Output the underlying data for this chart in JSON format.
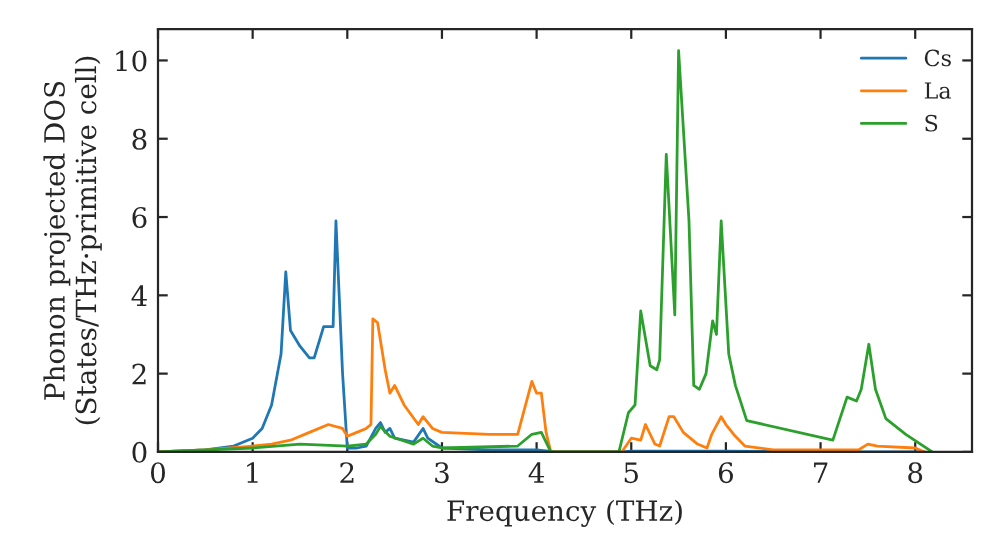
{
  "chart_data": {
    "type": "line",
    "xlabel": "Frequency (THz)",
    "ylabel": "Phonon projected DOS\n(States/THz·primitive cell)",
    "xlim": [
      0,
      8.6
    ],
    "xticks": [
      0,
      1,
      2,
      3,
      4,
      5,
      6,
      7,
      8
    ],
    "ylim": [
      0,
      10.8
    ],
    "yticks": [
      0,
      2,
      4,
      6,
      8,
      10
    ],
    "grid": false,
    "legend": "top right",
    "series": [
      {
        "name": "Cs",
        "color": "#1f77b4",
        "x": [
          0,
          0.5,
          0.8,
          1.0,
          1.1,
          1.2,
          1.3,
          1.35,
          1.4,
          1.5,
          1.6,
          1.65,
          1.75,
          1.85,
          1.88,
          1.95,
          2.0,
          2.1,
          2.2,
          2.3,
          2.35,
          2.4,
          2.45,
          2.5,
          2.7,
          2.8,
          2.85,
          3.0,
          3.5,
          4.0,
          4.2,
          4.9,
          5.0,
          6.0,
          7.0,
          8.1
        ],
        "values": [
          0,
          0.05,
          0.15,
          0.35,
          0.6,
          1.2,
          2.5,
          4.6,
          3.1,
          2.7,
          2.4,
          2.4,
          3.2,
          3.2,
          5.9,
          2.0,
          0.1,
          0.1,
          0.15,
          0.6,
          0.75,
          0.5,
          0.6,
          0.35,
          0.25,
          0.6,
          0.35,
          0.1,
          0.05,
          0.05,
          0,
          0,
          0.02,
          0.02,
          0,
          0
        ]
      },
      {
        "name": "La",
        "color": "#ff7f0e",
        "x": [
          0,
          0.5,
          1.0,
          1.2,
          1.4,
          1.6,
          1.8,
          1.95,
          2.0,
          2.1,
          2.2,
          2.25,
          2.27,
          2.32,
          2.4,
          2.45,
          2.5,
          2.6,
          2.75,
          2.8,
          2.9,
          3.0,
          3.5,
          3.8,
          3.95,
          4.0,
          4.05,
          4.1,
          4.15,
          4.9,
          5.0,
          5.1,
          5.15,
          5.25,
          5.3,
          5.4,
          5.45,
          5.55,
          5.7,
          5.8,
          5.85,
          5.95,
          6.0,
          6.1,
          6.2,
          6.5,
          7.4,
          7.5,
          7.6,
          8.0,
          8.1
        ],
        "values": [
          0,
          0.05,
          0.15,
          0.2,
          0.3,
          0.5,
          0.7,
          0.6,
          0.4,
          0.5,
          0.6,
          0.7,
          3.4,
          3.3,
          2.1,
          1.5,
          1.7,
          1.2,
          0.7,
          0.9,
          0.6,
          0.5,
          0.45,
          0.45,
          1.8,
          1.5,
          1.5,
          0.5,
          0,
          0,
          0.35,
          0.3,
          0.7,
          0.2,
          0.15,
          0.9,
          0.9,
          0.5,
          0.2,
          0.1,
          0.45,
          0.9,
          0.7,
          0.4,
          0.15,
          0.05,
          0.05,
          0.2,
          0.15,
          0.1,
          0
        ]
      },
      {
        "name": "S",
        "color": "#2ca02c",
        "x": [
          0,
          1.0,
          1.5,
          2.0,
          2.2,
          2.3,
          2.35,
          2.45,
          2.7,
          2.8,
          2.9,
          3.0,
          3.8,
          3.95,
          4.05,
          4.15,
          4.87,
          4.97,
          5.04,
          5.1,
          5.2,
          5.27,
          5.3,
          5.37,
          5.46,
          5.5,
          5.61,
          5.66,
          5.72,
          5.79,
          5.86,
          5.9,
          5.95,
          6.03,
          6.1,
          6.22,
          7.13,
          7.28,
          7.38,
          7.43,
          7.51,
          7.58,
          7.69,
          7.9,
          8.18
        ],
        "values": [
          0,
          0.1,
          0.2,
          0.15,
          0.2,
          0.45,
          0.65,
          0.4,
          0.2,
          0.35,
          0.15,
          0.1,
          0.15,
          0.45,
          0.5,
          0,
          0,
          1.0,
          1.2,
          3.6,
          2.2,
          2.1,
          2.35,
          7.6,
          3.5,
          10.25,
          5.9,
          1.7,
          1.6,
          2.0,
          3.35,
          3.0,
          5.9,
          2.5,
          1.7,
          0.8,
          0.3,
          1.4,
          1.3,
          1.6,
          2.75,
          1.6,
          0.85,
          0.45,
          0
        ]
      }
    ]
  }
}
